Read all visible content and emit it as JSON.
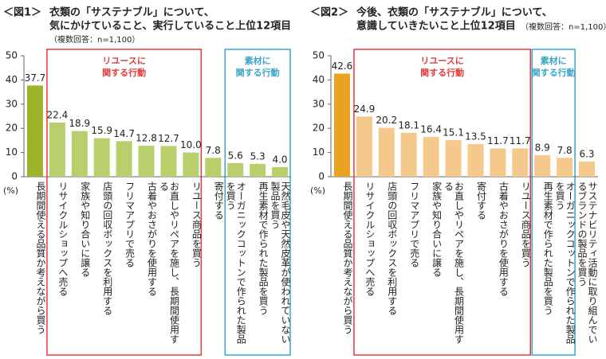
{
  "chart_data": [
    {
      "type": "bar",
      "label": "＜図1＞",
      "title": [
        "衣類の「サステナブル」について、",
        "気にかけていること、実行していること上位12項目"
      ],
      "subtitle": "（複数回答：n=1,100）",
      "y_unit": "(%)",
      "categories": [
        "長期間使える品質か考えながら買う",
        "リサイクルショップへ売る",
        "家族や知り合いに譲る",
        "店頭の回収ボックスを利用する",
        "フリマアプリで売る",
        "古着やおさがりを使用する",
        "お直しやリペアを施し、長期間使用する",
        "リユース商品を買う",
        "寄付する",
        "オーガニックコットンで作られた製品を買う",
        "再生素材で作られた製品を買う",
        "天然毛皮や天然皮革が使われていない製品を買う"
      ],
      "values": [
        37.7,
        22.4,
        18.9,
        15.9,
        14.7,
        12.8,
        12.7,
        10.0,
        7.8,
        5.6,
        5.3,
        4.0
      ],
      "value_labels": [
        "37.7",
        "22.4",
        "18.9",
        "15.9",
        "14.7",
        "12.8",
        "12.7",
        "10.0",
        "7.8",
        "5.6",
        "5.3",
        "4.0"
      ],
      "color": "#b9cf6c",
      "highlight_color": "#9bb42c",
      "ylim": [
        0,
        50
      ],
      "yticks": [
        0,
        10,
        20,
        30,
        40,
        50
      ],
      "groups": [
        {
          "label": [
            "リユースに",
            "関する行動"
          ],
          "span": [
            1,
            7
          ],
          "color": "#e23b3b"
        },
        {
          "label": [
            "素材に",
            "関する行動"
          ],
          "span": [
            9,
            11
          ],
          "color": "#3aa6c8"
        }
      ]
    },
    {
      "type": "bar",
      "label": "＜図2＞",
      "title": [
        "今後、衣類の「サステナブル」について、",
        "意識していきたいこと上位12項目"
      ],
      "subtitle": "（複数回答：n=1,100）",
      "y_unit": "(%)",
      "categories": [
        "長期間使える品質か考えながら買う",
        "リサイクルショップへ売る",
        "店頭の回収ボックスを利用する",
        "フリマアプリで売る",
        "家族や知り合いに譲る",
        "お直しやリペアを施し、長期間使用する",
        "寄付する",
        "古着やおさがりを使用する",
        "リユース商品を買う",
        "再生素材で作られた製品を買う",
        "オーガニックコットンで作られた製品を買う",
        "サステナビリティ活動に取り組んでいるブランドの製品を買う"
      ],
      "values": [
        42.6,
        24.9,
        20.2,
        18.1,
        16.4,
        15.1,
        13.5,
        11.7,
        11.7,
        8.9,
        7.8,
        6.3
      ],
      "value_labels": [
        "42.6",
        "24.9",
        "20.2",
        "18.1",
        "16.4",
        "15.1",
        "13.5",
        "11.7",
        "11.7",
        "8.9",
        "7.8",
        "6.3"
      ],
      "color": "#f5c98c",
      "highlight_color": "#e8a321",
      "ylim": [
        0,
        50
      ],
      "yticks": [
        0,
        10,
        20,
        30,
        40,
        50
      ],
      "groups": [
        {
          "label": [
            "リユースに",
            "関する行動"
          ],
          "span": [
            1,
            8
          ],
          "color": "#e23b3b"
        },
        {
          "label": [
            "素材に",
            "関する行動"
          ],
          "span": [
            9,
            10
          ],
          "color": "#3aa6c8"
        }
      ]
    }
  ]
}
